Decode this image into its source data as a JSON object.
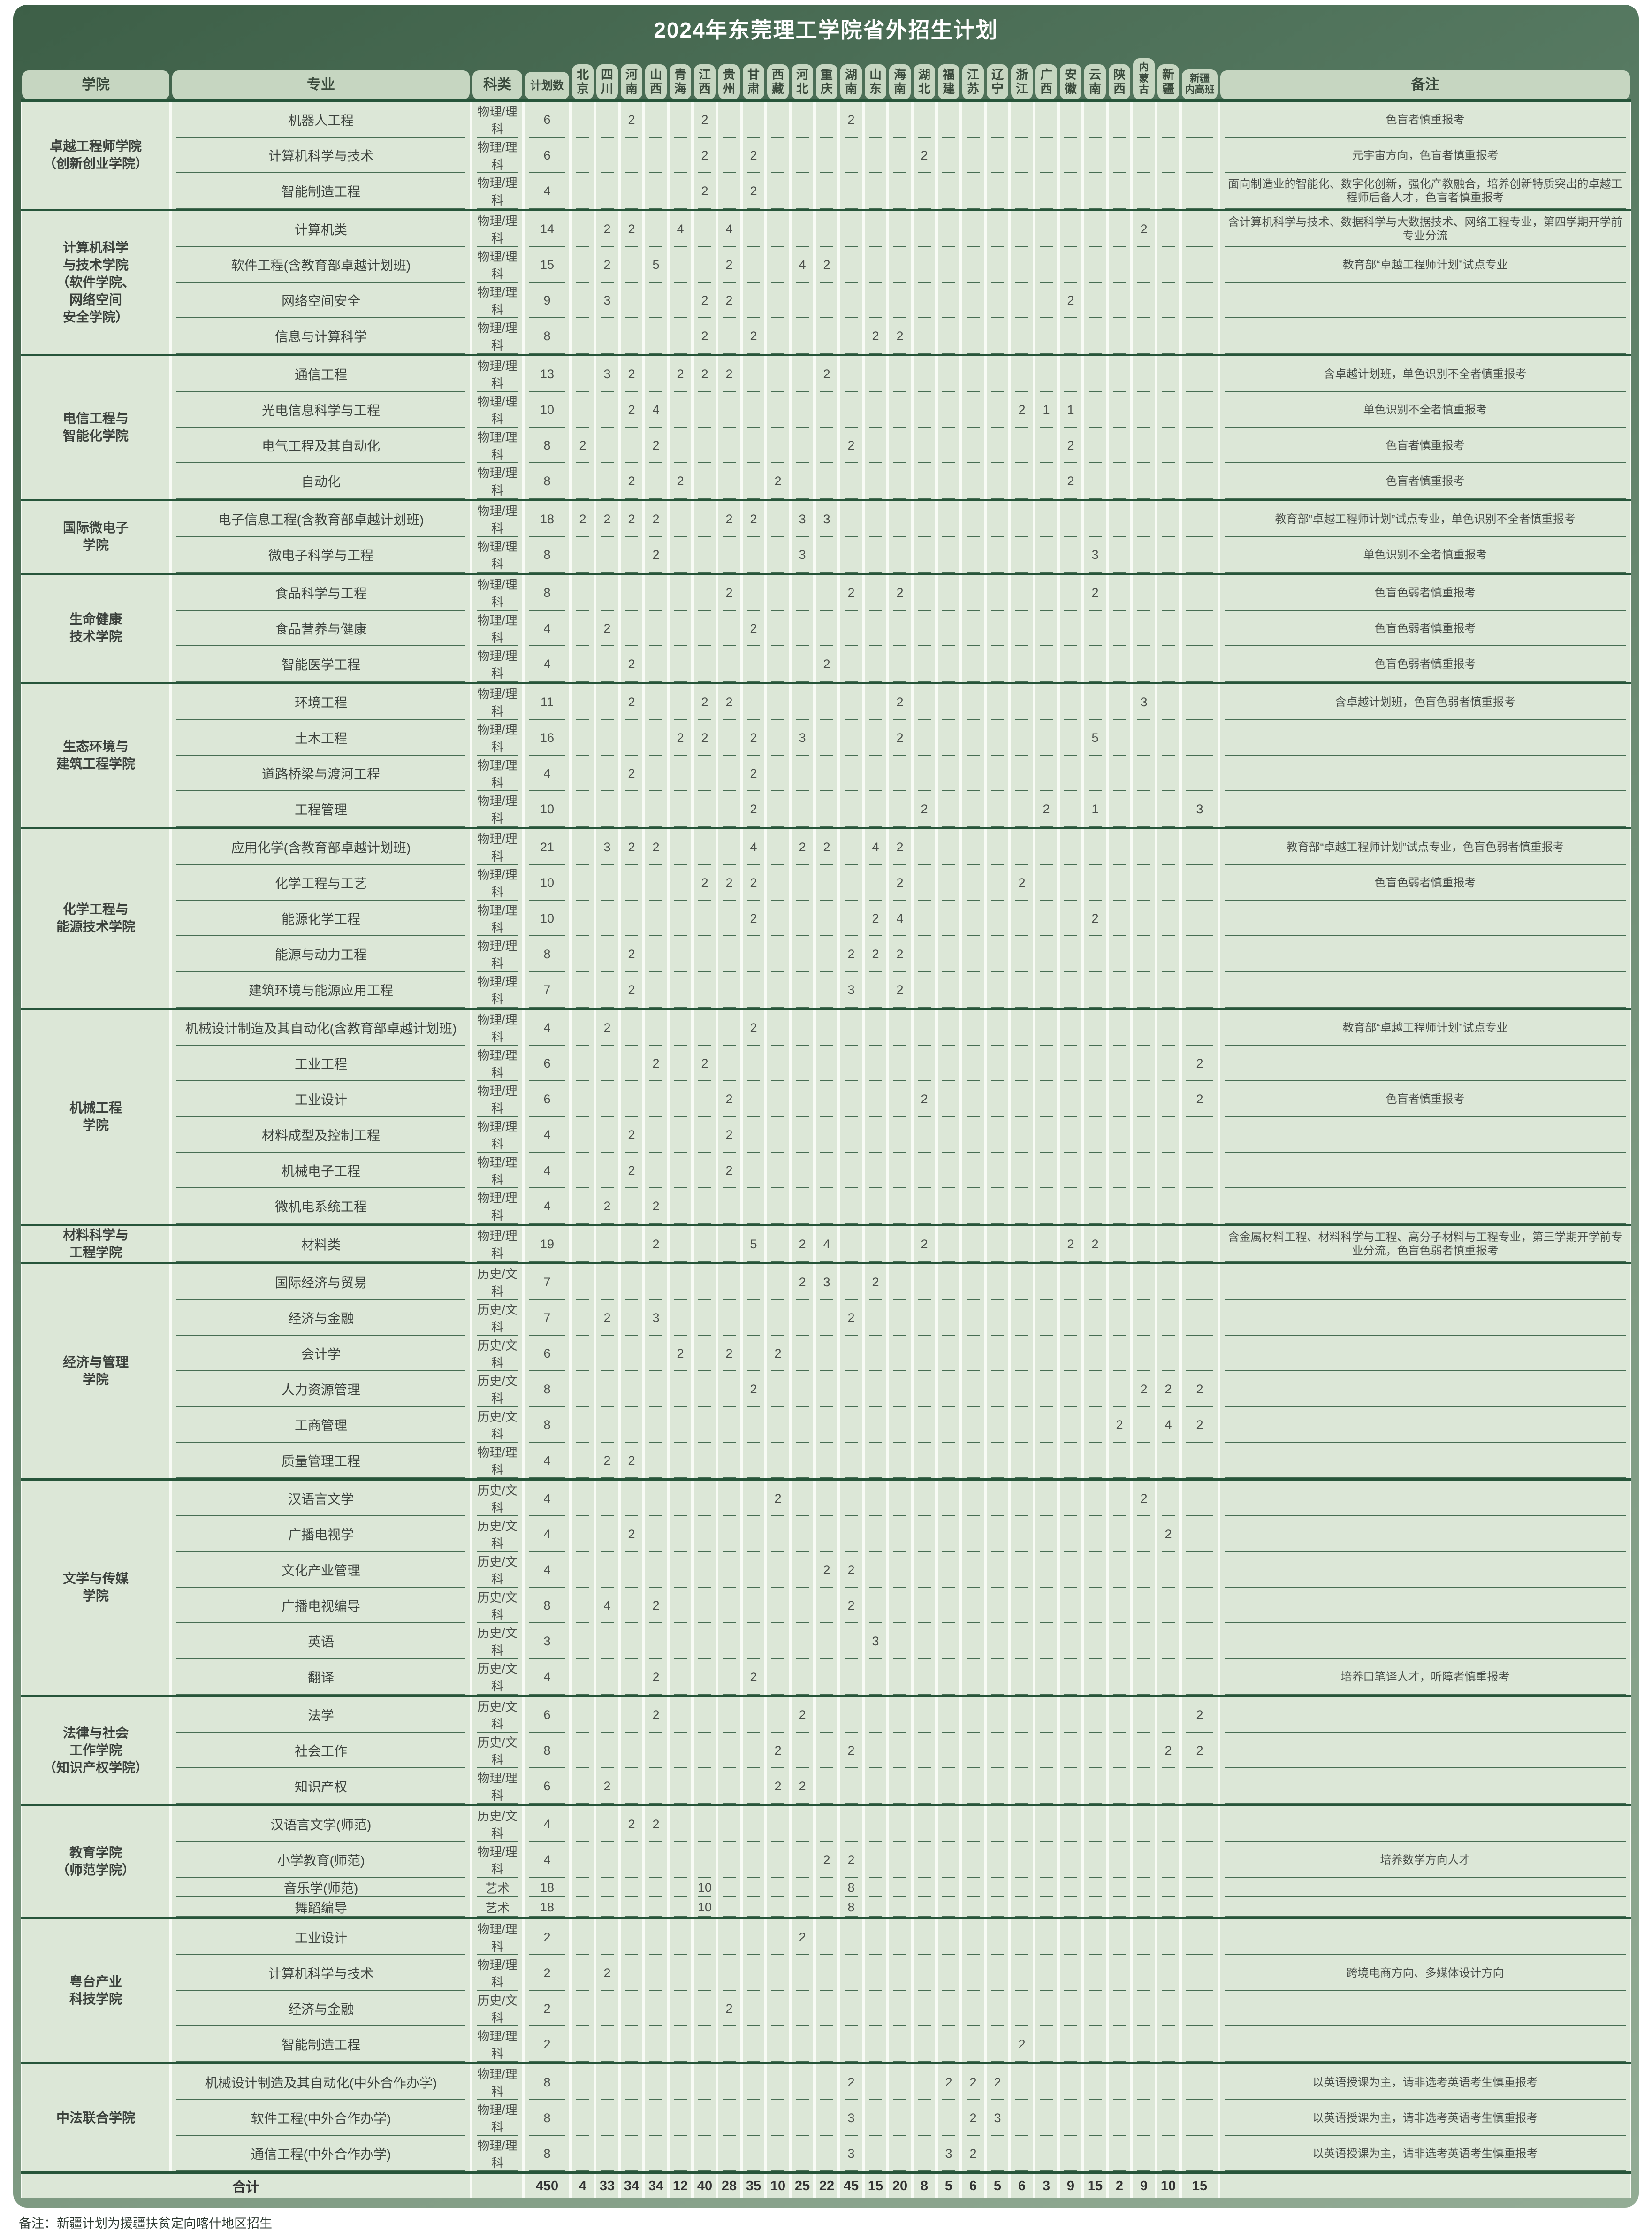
{
  "title": "2024年东莞理工学院省外招生计划",
  "footnote": "备注：新疆计划为援疆扶贫定向喀什地区招生",
  "headers": {
    "college": "学院",
    "major": "专业",
    "subject": "科类",
    "plan": "计划数",
    "remark": "备注"
  },
  "provinces": [
    "北京",
    "四川",
    "河南",
    "山西",
    "青海",
    "江西",
    "贵州",
    "甘肃",
    "西藏",
    "河北",
    "重庆",
    "湖南",
    "山东",
    "海南",
    "湖北",
    "福建",
    "江苏",
    "辽宁",
    "浙江",
    "广西",
    "安徽",
    "云南",
    "陕西",
    "内蒙古",
    "新疆",
    "新疆内高班"
  ],
  "colleges": [
    {
      "name": "卓越工程师学院\n（创新创业学院）",
      "majors": [
        {
          "major": "机器人工程",
          "subject": "物理/理科",
          "plan": 6,
          "values": {
            "河南": 2,
            "江西": 2,
            "湖南": 2
          },
          "remark": "色盲者慎重报考"
        },
        {
          "major": "计算机科学与技术",
          "subject": "物理/理科",
          "plan": 6,
          "values": {
            "江西": 2,
            "甘肃": 2,
            "湖北": 2
          },
          "remark": "元宇宙方向，色盲者慎重报考"
        },
        {
          "major": "智能制造工程",
          "subject": "物理/理科",
          "plan": 4,
          "values": {
            "江西": 2,
            "甘肃": 2
          },
          "remark": "面向制造业的智能化、数字化创新，强化产教融合，培养创新特质突出的卓越工程师后备人才，色盲者慎重报考"
        }
      ]
    },
    {
      "name": "计算机科学\n与技术学院\n（软件学院、\n网络空间\n安全学院）",
      "majors": [
        {
          "major": "计算机类",
          "subject": "物理/理科",
          "plan": 14,
          "values": {
            "四川": 2,
            "河南": 2,
            "青海": 4,
            "贵州": 4,
            "内蒙古": 2
          },
          "remark": "含计算机科学与技术、数据科学与大数据技术、网络工程专业，第四学期开学前专业分流"
        },
        {
          "major": "软件工程(含教育部卓越计划班)",
          "subject": "物理/理科",
          "plan": 15,
          "values": {
            "四川": 2,
            "山西": 5,
            "贵州": 2,
            "河北": 4,
            "重庆": 2
          },
          "remark": "教育部“卓越工程师计划”试点专业"
        },
        {
          "major": "网络空间安全",
          "subject": "物理/理科",
          "plan": 9,
          "values": {
            "四川": 3,
            "江西": 2,
            "贵州": 2,
            "安徽": 2
          },
          "remark": ""
        },
        {
          "major": "信息与计算科学",
          "subject": "物理/理科",
          "plan": 8,
          "values": {
            "江西": 2,
            "甘肃": 2,
            "山东": 2,
            "海南": 2
          },
          "remark": ""
        }
      ]
    },
    {
      "name": "电信工程与\n智能化学院",
      "majors": [
        {
          "major": "通信工程",
          "subject": "物理/理科",
          "plan": 13,
          "values": {
            "四川": 3,
            "河南": 2,
            "青海": 2,
            "江西": 2,
            "贵州": 2,
            "重庆": 2
          },
          "remark": "含卓越计划班，单色识别不全者慎重报考"
        },
        {
          "major": "光电信息科学与工程",
          "subject": "物理/理科",
          "plan": 10,
          "values": {
            "河南": 2,
            "山西": 4,
            "浙江": 2,
            "广西": 1,
            "安徽": 1
          },
          "remark": "单色识别不全者慎重报考"
        },
        {
          "major": "电气工程及其自动化",
          "subject": "物理/理科",
          "plan": 8,
          "values": {
            "北京": 2,
            "山西": 2,
            "湖南": 2,
            "安徽": 2
          },
          "remark": "色盲者慎重报考"
        },
        {
          "major": "自动化",
          "subject": "物理/理科",
          "plan": 8,
          "values": {
            "河南": 2,
            "青海": 2,
            "西藏": 2,
            "安徽": 2
          },
          "remark": "色盲者慎重报考"
        }
      ]
    },
    {
      "name": "国际微电子\n学院",
      "majors": [
        {
          "major": "电子信息工程(含教育部卓越计划班)",
          "subject": "物理/理科",
          "plan": 18,
          "values": {
            "北京": 2,
            "四川": 2,
            "河南": 2,
            "山西": 2,
            "贵州": 2,
            "甘肃": 2,
            "河北": 3,
            "重庆": 3
          },
          "remark": "教育部“卓越工程师计划”试点专业，单色识别不全者慎重报考"
        },
        {
          "major": "微电子科学与工程",
          "subject": "物理/理科",
          "plan": 8,
          "values": {
            "山西": 2,
            "河北": 3,
            "云南": 3
          },
          "remark": "单色识别不全者慎重报考"
        }
      ]
    },
    {
      "name": "生命健康\n技术学院",
      "majors": [
        {
          "major": "食品科学与工程",
          "subject": "物理/理科",
          "plan": 8,
          "values": {
            "贵州": 2,
            "湖南": 2,
            "海南": 2,
            "云南": 2
          },
          "remark": "色盲色弱者慎重报考"
        },
        {
          "major": "食品营养与健康",
          "subject": "物理/理科",
          "plan": 4,
          "values": {
            "四川": 2,
            "甘肃": 2
          },
          "remark": "色盲色弱者慎重报考"
        },
        {
          "major": "智能医学工程",
          "subject": "物理/理科",
          "plan": 4,
          "values": {
            "河南": 2,
            "重庆": 2
          },
          "remark": "色盲色弱者慎重报考"
        }
      ]
    },
    {
      "name": "生态环境与\n建筑工程学院",
      "majors": [
        {
          "major": "环境工程",
          "subject": "物理/理科",
          "plan": 11,
          "values": {
            "河南": 2,
            "江西": 2,
            "贵州": 2,
            "海南": 2,
            "内蒙古": 3
          },
          "remark": "含卓越计划班，色盲色弱者慎重报考"
        },
        {
          "major": "土木工程",
          "subject": "物理/理科",
          "plan": 16,
          "values": {
            "青海": 2,
            "江西": 2,
            "甘肃": 2,
            "河北": 3,
            "海南": 2,
            "云南": 5
          },
          "remark": ""
        },
        {
          "major": "道路桥梁与渡河工程",
          "subject": "物理/理科",
          "plan": 4,
          "values": {
            "河南": 2,
            "甘肃": 2
          },
          "remark": ""
        },
        {
          "major": "工程管理",
          "subject": "物理/理科",
          "plan": 10,
          "values": {
            "甘肃": 2,
            "湖北": 2,
            "广西": 2,
            "云南": 1,
            "新疆内高班": 3
          },
          "remark": ""
        }
      ]
    },
    {
      "name": "化学工程与\n能源技术学院",
      "majors": [
        {
          "major": "应用化学(含教育部卓越计划班)",
          "subject": "物理/理科",
          "plan": 21,
          "values": {
            "四川": 3,
            "河南": 2,
            "山西": 2,
            "甘肃": 4,
            "河北": 2,
            "重庆": 2,
            "山东": 4,
            "海南": 2
          },
          "remark": "教育部“卓越工程师计划”试点专业，色盲色弱者慎重报考"
        },
        {
          "major": "化学工程与工艺",
          "subject": "物理/理科",
          "plan": 10,
          "values": {
            "江西": 2,
            "贵州": 2,
            "甘肃": 2,
            "海南": 2,
            "浙江": 2
          },
          "remark": "色盲色弱者慎重报考"
        },
        {
          "major": "能源化学工程",
          "subject": "物理/理科",
          "plan": 10,
          "values": {
            "甘肃": 2,
            "山东": 2,
            "海南": 4,
            "云南": 2
          },
          "remark": ""
        },
        {
          "major": "能源与动力工程",
          "subject": "物理/理科",
          "plan": 8,
          "values": {
            "河南": 2,
            "湖南": 2,
            "山东": 2,
            "海南": 2
          },
          "remark": ""
        },
        {
          "major": "建筑环境与能源应用工程",
          "subject": "物理/理科",
          "plan": 7,
          "values": {
            "河南": 2,
            "湖南": 3,
            "海南": 2
          },
          "remark": ""
        }
      ]
    },
    {
      "name": "机械工程\n学院",
      "majors": [
        {
          "major": "机械设计制造及其自动化(含教育部卓越计划班)",
          "subject": "物理/理科",
          "plan": 4,
          "values": {
            "四川": 2,
            "甘肃": 2
          },
          "remark": "教育部“卓越工程师计划”试点专业"
        },
        {
          "major": "工业工程",
          "subject": "物理/理科",
          "plan": 6,
          "values": {
            "山西": 2,
            "江西": 2,
            "新疆内高班": 2
          },
          "remark": ""
        },
        {
          "major": "工业设计",
          "subject": "物理/理科",
          "plan": 6,
          "values": {
            "贵州": 2,
            "湖北": 2,
            "新疆内高班": 2
          },
          "remark": "色盲者慎重报考"
        },
        {
          "major": "材料成型及控制工程",
          "subject": "物理/理科",
          "plan": 4,
          "values": {
            "河南": 2,
            "贵州": 2
          },
          "remark": ""
        },
        {
          "major": "机械电子工程",
          "subject": "物理/理科",
          "plan": 4,
          "values": {
            "河南": 2,
            "贵州": 2
          },
          "remark": ""
        },
        {
          "major": "微机电系统工程",
          "subject": "物理/理科",
          "plan": 4,
          "values": {
            "四川": 2,
            "山西": 2
          },
          "remark": ""
        }
      ]
    },
    {
      "name": "材料科学与\n工程学院",
      "majors": [
        {
          "major": "材料类",
          "subject": "物理/理科",
          "plan": 19,
          "values": {
            "山西": 2,
            "甘肃": 5,
            "河北": 2,
            "重庆": 4,
            "湖北": 2,
            "安徽": 2,
            "云南": 2
          },
          "remark": "含金属材料工程、材料科学与工程、高分子材料与工程专业，第三学期开学前专业分流，色盲色弱者慎重报考"
        }
      ]
    },
    {
      "name": "经济与管理\n学院",
      "majors": [
        {
          "major": "国际经济与贸易",
          "subject": "历史/文科",
          "plan": 7,
          "values": {
            "河北": 2,
            "重庆": 3,
            "山东": 2
          },
          "remark": ""
        },
        {
          "major": "经济与金融",
          "subject": "历史/文科",
          "plan": 7,
          "values": {
            "四川": 2,
            "山西": 3,
            "湖南": 2
          },
          "remark": ""
        },
        {
          "major": "会计学",
          "subject": "历史/文科",
          "plan": 6,
          "values": {
            "青海": 2,
            "贵州": 2,
            "西藏": 2
          },
          "remark": ""
        },
        {
          "major": "人力资源管理",
          "subject": "历史/文科",
          "plan": 8,
          "values": {
            "甘肃": 2,
            "内蒙古": 2,
            "新疆": 2,
            "新疆内高班": 2
          },
          "remark": ""
        },
        {
          "major": "工商管理",
          "subject": "历史/文科",
          "plan": 8,
          "values": {
            "陕西": 2,
            "新疆": 4,
            "新疆内高班": 2
          },
          "remark": ""
        },
        {
          "major": "质量管理工程",
          "subject": "物理/理科",
          "plan": 4,
          "values": {
            "四川": 2,
            "河南": 2
          },
          "remark": ""
        }
      ]
    },
    {
      "name": "文学与传媒\n学院",
      "majors": [
        {
          "major": "汉语言文学",
          "subject": "历史/文科",
          "plan": 4,
          "values": {
            "西藏": 2,
            "内蒙古": 2
          },
          "remark": ""
        },
        {
          "major": "广播电视学",
          "subject": "历史/文科",
          "plan": 4,
          "values": {
            "河南": 2,
            "新疆": 2
          },
          "remark": ""
        },
        {
          "major": "文化产业管理",
          "subject": "历史/文科",
          "plan": 4,
          "values": {
            "重庆": 2,
            "湖南": 2
          },
          "remark": ""
        },
        {
          "major": "广播电视编导",
          "subject": "历史/文科",
          "plan": 8,
          "values": {
            "四川": 4,
            "山西": 2,
            "湖南": 2
          },
          "remark": ""
        },
        {
          "major": "英语",
          "subject": "历史/文科",
          "plan": 3,
          "values": {
            "山东": 3
          },
          "remark": ""
        },
        {
          "major": "翻译",
          "subject": "历史/文科",
          "plan": 4,
          "values": {
            "山西": 2,
            "甘肃": 2
          },
          "remark": "培养口笔译人才，听障者慎重报考"
        }
      ]
    },
    {
      "name": "法律与社会\n工作学院\n（知识产权学院）",
      "majors": [
        {
          "major": "法学",
          "subject": "历史/文科",
          "plan": 6,
          "values": {
            "山西": 2,
            "河北": 2,
            "新疆内高班": 2
          },
          "remark": ""
        },
        {
          "major": "社会工作",
          "subject": "历史/文科",
          "plan": 8,
          "values": {
            "西藏": 2,
            "湖南": 2,
            "新疆": 2,
            "新疆内高班": 2
          },
          "remark": ""
        },
        {
          "major": "知识产权",
          "subject": "物理/理科",
          "plan": 6,
          "values": {
            "四川": 2,
            "西藏": 2,
            "河北": 2
          },
          "remark": ""
        }
      ]
    },
    {
      "name": "教育学院\n（师范学院）",
      "majors": [
        {
          "major": "汉语言文学(师范)",
          "subject": "历史/文科",
          "plan": 4,
          "values": {
            "河南": 2,
            "山西": 2
          },
          "remark": ""
        },
        {
          "major": "小学教育(师范)",
          "subject": "物理/理科",
          "plan": 4,
          "values": {
            "重庆": 2,
            "湖南": 2
          },
          "remark": "培养数学方向人才"
        },
        {
          "major": "音乐学(师范)",
          "subject": "艺术",
          "plan": 18,
          "values": {
            "江西": 10,
            "湖南": 8
          },
          "remark": ""
        },
        {
          "major": "舞蹈编导",
          "subject": "艺术",
          "plan": 18,
          "values": {
            "江西": 10,
            "湖南": 8
          },
          "remark": ""
        }
      ]
    },
    {
      "name": "粤台产业\n科技学院",
      "majors": [
        {
          "major": "工业设计",
          "subject": "物理/理科",
          "plan": 2,
          "values": {
            "河北": 2
          },
          "remark": ""
        },
        {
          "major": "计算机科学与技术",
          "subject": "物理/理科",
          "plan": 2,
          "values": {
            "四川": 2
          },
          "remark": "跨境电商方向、多媒体设计方向"
        },
        {
          "major": "经济与金融",
          "subject": "历史/文科",
          "plan": 2,
          "values": {
            "贵州": 2
          },
          "remark": ""
        },
        {
          "major": "智能制造工程",
          "subject": "物理/理科",
          "plan": 2,
          "values": {
            "浙江": 2
          },
          "remark": ""
        }
      ]
    },
    {
      "name": "中法联合学院",
      "majors": [
        {
          "major": "机械设计制造及其自动化(中外合作办学)",
          "subject": "物理/理科",
          "plan": 8,
          "values": {
            "湖南": 2,
            "福建": 2,
            "江苏": 2,
            "辽宁": 2
          },
          "remark": "以英语授课为主，请非选考英语考生慎重报考"
        },
        {
          "major": "软件工程(中外合作办学)",
          "subject": "物理/理科",
          "plan": 8,
          "values": {
            "湖南": 3,
            "江苏": 2,
            "辽宁": 3
          },
          "remark": "以英语授课为主，请非选考英语考生慎重报考"
        },
        {
          "major": "通信工程(中外合作办学)",
          "subject": "物理/理科",
          "plan": 8,
          "values": {
            "湖南": 3,
            "福建": 3,
            "江苏": 2
          },
          "remark": "以英语授课为主，请非选考英语考生慎重报考"
        }
      ]
    }
  ],
  "total": {
    "label": "合计",
    "plan": 450,
    "values": {
      "北京": 4,
      "四川": 33,
      "河南": 34,
      "山西": 34,
      "青海": 12,
      "江西": 40,
      "贵州": 28,
      "甘肃": 35,
      "西藏": 10,
      "河北": 25,
      "重庆": 22,
      "湖南": 45,
      "山东": 15,
      "海南": 20,
      "湖北": 8,
      "福建": 5,
      "江苏": 6,
      "辽宁": 5,
      "浙江": 6,
      "广西": 3,
      "安徽": 9,
      "云南": 15,
      "陕西": 2,
      "内蒙古": 9,
      "新疆": 10,
      "新疆内高班": 15
    }
  }
}
